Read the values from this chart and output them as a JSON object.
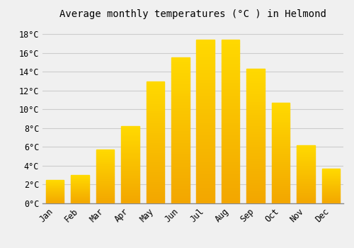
{
  "title": "Average monthly temperatures (°C ) in Helmond",
  "months": [
    "Jan",
    "Feb",
    "Mar",
    "Apr",
    "May",
    "Jun",
    "Jul",
    "Aug",
    "Sep",
    "Oct",
    "Nov",
    "Dec"
  ],
  "values": [
    2.5,
    3.0,
    5.7,
    8.2,
    13.0,
    15.5,
    17.4,
    17.4,
    14.3,
    10.7,
    6.2,
    3.7
  ],
  "bar_color": "#FFC020",
  "bar_edge_color": "#E8A000",
  "background_color": "#F0F0F0",
  "grid_color": "#CCCCCC",
  "ylim": [
    0,
    19
  ],
  "yticks": [
    0,
    2,
    4,
    6,
    8,
    10,
    12,
    14,
    16,
    18
  ],
  "title_fontsize": 10,
  "tick_fontsize": 8.5,
  "tick_font_family": "monospace"
}
